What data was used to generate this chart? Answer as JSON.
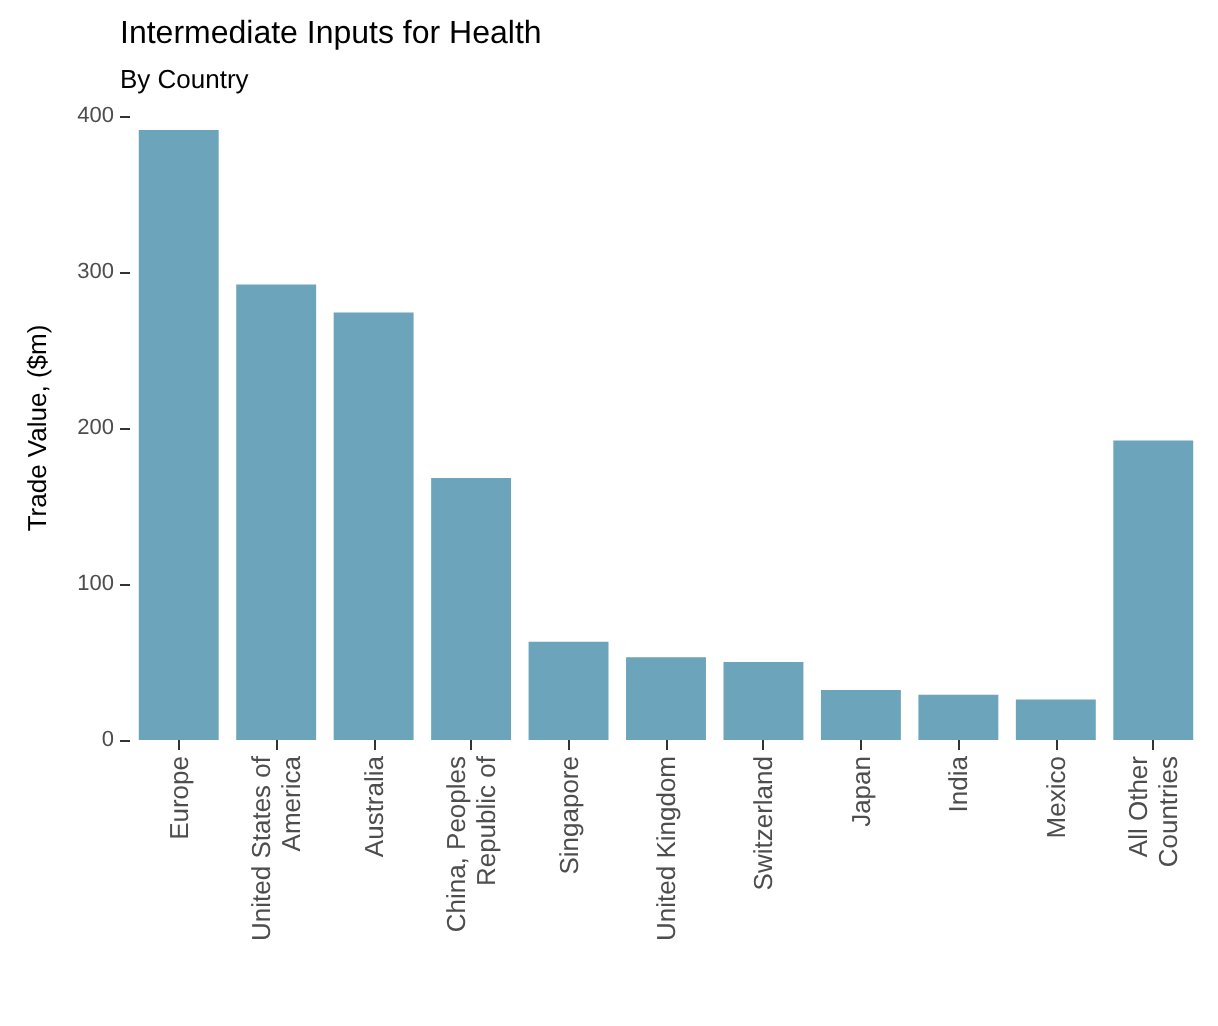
{
  "chart_data": {
    "type": "bar",
    "title": "Intermediate Inputs for Health",
    "subtitle": "By Country",
    "ylabel": "Trade Value, ($m)",
    "categories": [
      "Europe",
      "United States of\nAmerica",
      "Australia",
      "China, Peoples\nRepublic of",
      "Singapore",
      "United Kingdom",
      "Switzerland",
      "Japan",
      "India",
      "Mexico",
      "All Other\nCountries"
    ],
    "values": [
      391,
      292,
      274,
      168,
      63,
      53,
      50,
      32,
      29,
      26,
      192
    ],
    "color": "#6ca4bb",
    "ylim": [
      0,
      400
    ],
    "yticks": [
      0,
      100,
      200,
      300,
      400
    ]
  }
}
